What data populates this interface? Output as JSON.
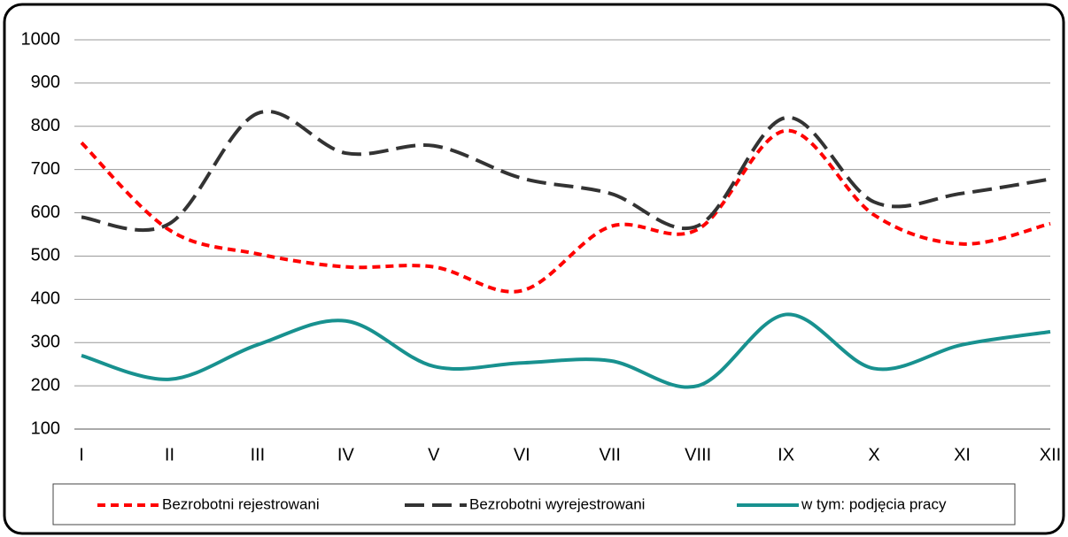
{
  "chart_data": {
    "type": "line",
    "categories": [
      "I",
      "II",
      "III",
      "IV",
      "V",
      "VI",
      "VII",
      "VIII",
      "IX",
      "X",
      "XI",
      "XII"
    ],
    "series": [
      {
        "name": "Bezrobotni rejestrowani",
        "color": "#ff0000",
        "dash": "9 6",
        "values": [
          762,
          560,
          505,
          475,
          475,
          420,
          568,
          562,
          790,
          595,
          528,
          575
        ]
      },
      {
        "name": "Bezrobotni wyrejestrowani",
        "color": "#333333",
        "dash": "22 9",
        "values": [
          590,
          575,
          830,
          738,
          755,
          680,
          645,
          570,
          820,
          625,
          645,
          678
        ]
      },
      {
        "name": "w tym: podjęcia pracy",
        "color": "#18918f",
        "dash": "none",
        "values": [
          270,
          215,
          295,
          350,
          245,
          253,
          258,
          200,
          365,
          240,
          295,
          325
        ]
      }
    ],
    "ylim": [
      100,
      1000
    ],
    "yticks": [
      100,
      200,
      300,
      400,
      500,
      600,
      700,
      800,
      900,
      1000
    ],
    "grid": true,
    "smooth": true,
    "legend": "bottom"
  }
}
